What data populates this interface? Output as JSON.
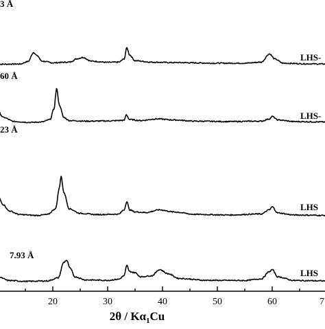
{
  "chart_data": {
    "type": "line",
    "title": "",
    "xlabel_main": "2θ / Kα",
    "xlabel_sub": "1",
    "xlabel_tail": "Cu",
    "ylabel": "",
    "xlim": [
      10,
      70
    ],
    "x_ticks": [
      20,
      30,
      40,
      50,
      60
    ],
    "x_tick_labels": [
      "20",
      "30",
      "40",
      "50",
      "60"
    ],
    "x_tick_cut": "7",
    "grid": false,
    "legend": "none",
    "series": [
      {
        "label": "LHS-",
        "d_spacing_label": "3 Å",
        "baseline": 0.5,
        "points": [
          [
            10,
            0.5
          ],
          [
            14,
            0.6
          ],
          [
            15.5,
            1.8
          ],
          [
            16.5,
            6.2
          ],
          [
            17.2,
            4.5
          ],
          [
            18,
            2.0
          ],
          [
            20,
            1.2
          ],
          [
            23,
            1.5
          ],
          [
            24.5,
            3.2
          ],
          [
            25.5,
            3.8
          ],
          [
            27,
            2.0
          ],
          [
            30,
            1.4
          ],
          [
            32,
            1.5
          ],
          [
            33,
            3.0
          ],
          [
            33.5,
            8.5
          ],
          [
            34,
            5.0
          ],
          [
            35,
            2.2
          ],
          [
            38,
            1.5
          ],
          [
            42,
            1.3
          ],
          [
            50,
            1.0
          ],
          [
            55,
            1.0
          ],
          [
            58,
            1.5
          ],
          [
            59.5,
            5.5
          ],
          [
            60.5,
            3.0
          ],
          [
            62,
            1.0
          ],
          [
            66,
            0.7
          ],
          [
            70,
            0.6
          ]
        ]
      },
      {
        "label": "LHS-",
        "d_spacing_label": "60 Å",
        "baseline": 0.3,
        "points": [
          [
            10,
            6.0
          ],
          [
            11,
            3.0
          ],
          [
            13,
            1.0
          ],
          [
            16,
            0.6
          ],
          [
            18,
            0.8
          ],
          [
            19.5,
            2.0
          ],
          [
            20.2,
            7.0
          ],
          [
            20.7,
            17.0
          ],
          [
            21.2,
            9.0
          ],
          [
            22,
            3.0
          ],
          [
            23,
            1.5
          ],
          [
            26,
            1.2
          ],
          [
            30,
            1.3
          ],
          [
            33,
            1.6
          ],
          [
            33.4,
            4.3
          ],
          [
            34,
            2.0
          ],
          [
            36,
            1.5
          ],
          [
            39,
            2.3
          ],
          [
            42,
            1.8
          ],
          [
            46,
            1.2
          ],
          [
            52,
            1.0
          ],
          [
            58,
            1.2
          ],
          [
            59.5,
            2.3
          ],
          [
            60,
            3.5
          ],
          [
            61,
            1.8
          ],
          [
            64,
            1.0
          ],
          [
            70,
            0.8
          ]
        ]
      },
      {
        "label": "LHS",
        "d_spacing_label": "23 Å",
        "baseline": 0.3,
        "points": [
          [
            10,
            10.0
          ],
          [
            11,
            6.0
          ],
          [
            12,
            3.0
          ],
          [
            14,
            1.2
          ],
          [
            17,
            0.8
          ],
          [
            19,
            1.2
          ],
          [
            20.5,
            4.0
          ],
          [
            21.2,
            14.0
          ],
          [
            21.5,
            20.0
          ],
          [
            22,
            12.0
          ],
          [
            23,
            4.0
          ],
          [
            25,
            1.8
          ],
          [
            28,
            1.2
          ],
          [
            32,
            1.4
          ],
          [
            33,
            3.5
          ],
          [
            33.5,
            7.5
          ],
          [
            34,
            3.5
          ],
          [
            35,
            2.5
          ],
          [
            37,
            2.2
          ],
          [
            39.5,
            3.5
          ],
          [
            42,
            2.5
          ],
          [
            46,
            1.3
          ],
          [
            52,
            1.0
          ],
          [
            58,
            1.5
          ],
          [
            59.5,
            3.5
          ],
          [
            60,
            5.0
          ],
          [
            61,
            2.0
          ],
          [
            64,
            1.0
          ],
          [
            70,
            0.8
          ]
        ]
      },
      {
        "label": "LHS",
        "d_spacing_label": "7.93 Å",
        "baseline": 0.3,
        "points": [
          [
            10,
            3.0
          ],
          [
            12,
            1.2
          ],
          [
            15,
            0.8
          ],
          [
            19,
            1.0
          ],
          [
            21,
            2.5
          ],
          [
            22,
            10.0
          ],
          [
            22.5,
            11.0
          ],
          [
            23.2,
            7.0
          ],
          [
            24,
            3.0
          ],
          [
            26,
            1.5
          ],
          [
            30,
            1.3
          ],
          [
            32,
            1.8
          ],
          [
            33,
            3.5
          ],
          [
            33.5,
            8.5
          ],
          [
            34,
            5.5
          ],
          [
            35,
            5.0
          ],
          [
            36,
            3.0
          ],
          [
            38,
            3.5
          ],
          [
            39.5,
            6.5
          ],
          [
            41,
            4.5
          ],
          [
            43,
            2.2
          ],
          [
            48,
            1.3
          ],
          [
            55,
            1.2
          ],
          [
            58,
            2.0
          ],
          [
            59.5,
            5.5
          ],
          [
            60,
            6.5
          ],
          [
            61,
            3.0
          ],
          [
            64,
            1.2
          ],
          [
            70,
            1.0
          ]
        ]
      }
    ]
  }
}
